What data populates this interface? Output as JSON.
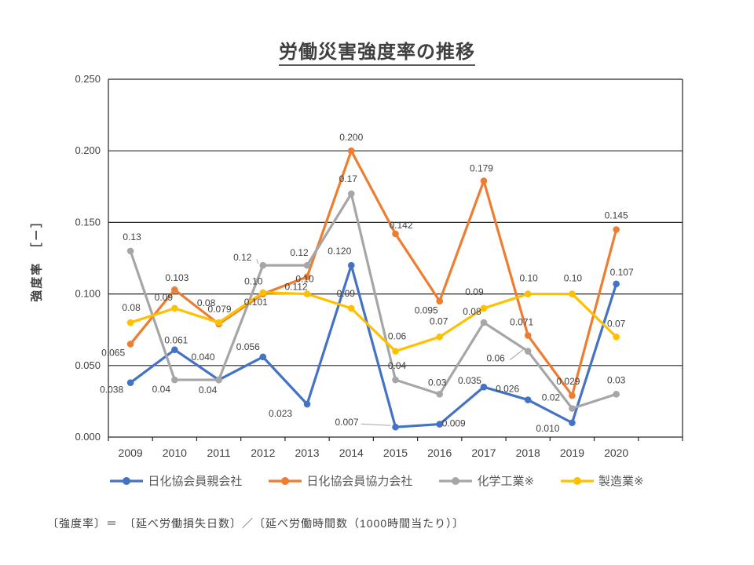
{
  "page": {
    "title": "労働災害強度率の推移",
    "y_axis_title": "強度率　［－］",
    "formula": "〔強度率〕＝　〔延べ労働損失日数〕／〔延べ労働時間数（1000時間当たり）〕"
  },
  "chart_data": {
    "type": "line",
    "title": "労働災害強度率の推移",
    "xlabel": "",
    "ylabel": "強度率　［－］",
    "ylim": [
      0,
      0.25
    ],
    "ytick_labels": [
      "0.000",
      "0.050",
      "0.100",
      "0.150",
      "0.200",
      "0.250"
    ],
    "grid": true,
    "legend_position": "bottom",
    "axis_color": "#262626",
    "text_color": "#404040",
    "leader_color": "#a6a6a6",
    "categories": [
      "2009",
      "2010",
      "2011",
      "2012",
      "2013",
      "2014",
      "2015",
      "2016",
      "2017",
      "2018",
      "2019",
      "2020"
    ],
    "series": [
      {
        "id": "nikkakyo-parent",
        "name": "日化協会員親会社",
        "color": "#4472C4",
        "values": [
          0.038,
          0.061,
          0.04,
          0.056,
          0.023,
          0.12,
          0.007,
          0.009,
          0.035,
          0.026,
          0.01,
          0.107
        ],
        "labels": [
          {
            "t": "0.038",
            "dx": -24,
            "dy": 9
          },
          {
            "t": "0.061",
            "dx": 2,
            "dy": -12
          },
          {
            "t": "0.040",
            "dx": -20,
            "dy": -29
          },
          {
            "t": "0.056",
            "dx": -19,
            "dy": -13
          },
          {
            "t": "0.023",
            "dx": -34,
            "dy": 12
          },
          {
            "t": "0.120",
            "dx": -15,
            "dy": -18
          },
          {
            "t": "0.007",
            "dx": -62,
            "dy": -6,
            "leader": true
          },
          {
            "t": "0.009",
            "dx": 18,
            "dy": -1
          },
          {
            "t": "0.035",
            "dx": -18,
            "dy": -8
          },
          {
            "t": "0.026",
            "dx": -26,
            "dy": -14
          },
          {
            "t": "0.010",
            "dx": -31,
            "dy": 7
          },
          {
            "t": "0.107",
            "dx": 7,
            "dy": -15
          }
        ]
      },
      {
        "id": "nikkakyo-partner",
        "name": "日化協会員協力会社",
        "color": "#ED7D31",
        "values": [
          0.065,
          0.103,
          0.079,
          0.1,
          0.112,
          0.2,
          0.142,
          0.095,
          0.179,
          0.071,
          0.029,
          0.145
        ],
        "labels": [
          {
            "t": "0.065",
            "dx": -22,
            "dy": 11
          },
          {
            "t": "0.103",
            "dx": 3,
            "dy": -15
          },
          {
            "t": "0.079",
            "dx": 1,
            "dy": -19
          },
          {
            "t": "0.10",
            "dx": -12,
            "dy": -16
          },
          {
            "t": "0.112",
            "dx": -14,
            "dy": 13
          },
          {
            "t": "0.200",
            "dx": 0,
            "dy": -17
          },
          {
            "t": "0.142",
            "dx": 7,
            "dy": -11
          },
          {
            "t": "0.095",
            "dx": -17,
            "dy": 12
          },
          {
            "t": "0.179",
            "dx": -3,
            "dy": -16
          },
          {
            "t": "0.071",
            "dx": -8,
            "dy": -17
          },
          {
            "t": "0.029",
            "dx": -5,
            "dy": -18
          },
          {
            "t": "0.145",
            "dx": 0,
            "dy": -18
          }
        ]
      },
      {
        "id": "chemical-industry",
        "name": "化学工業※",
        "color": "#A6A6A6",
        "values": [
          0.13,
          0.04,
          0.04,
          0.12,
          0.12,
          0.17,
          0.04,
          0.03,
          0.08,
          0.06,
          0.02,
          0.03
        ],
        "labels": [
          {
            "t": "0.13",
            "dx": 2,
            "dy": -18
          },
          {
            "t": "0.04",
            "dx": -17,
            "dy": 12
          },
          {
            "t": "0.04",
            "dx": -14,
            "dy": 13
          },
          {
            "t": "0.12",
            "dx": -26,
            "dy": -10,
            "leader": true
          },
          {
            "t": "0.12",
            "dx": -10,
            "dy": -16
          },
          {
            "t": "0.17",
            "dx": -4,
            "dy": -19
          },
          {
            "t": "0.04",
            "dx": 2,
            "dy": -18
          },
          {
            "t": "0.03",
            "dx": -3,
            "dy": -15
          },
          {
            "t": "0.08",
            "dx": -15,
            "dy": -14
          },
          {
            "t": "0.06",
            "dx": -41,
            "dy": 9,
            "leader": true
          },
          {
            "t": "0.02",
            "dx": -27,
            "dy": -14
          },
          {
            "t": "0.03",
            "dx": 0,
            "dy": -18
          }
        ]
      },
      {
        "id": "manufacturing",
        "name": "製造業※",
        "color": "#FFC000",
        "values": [
          0.08,
          0.09,
          0.08,
          0.101,
          0.1,
          0.09,
          0.06,
          0.07,
          0.09,
          0.1,
          0.1,
          0.07
        ],
        "labels": [
          {
            "t": "0.08",
            "dx": 1,
            "dy": -19
          },
          {
            "t": "0.09",
            "dx": -14,
            "dy": -14
          },
          {
            "t": "0.08",
            "dx": -16,
            "dy": -25
          },
          {
            "t": "0.101",
            "dx": -9,
            "dy": 12
          },
          {
            "t": "0.10",
            "dx": -3,
            "dy": -19
          },
          {
            "t": "0.09",
            "dx": -7,
            "dy": -19
          },
          {
            "t": "0.06",
            "dx": 2,
            "dy": -19
          },
          {
            "t": "0.07",
            "dx": -1,
            "dy": -20
          },
          {
            "t": "0.09",
            "dx": -12,
            "dy": -21
          },
          {
            "t": "0.10",
            "dx": 1,
            "dy": -20
          },
          {
            "t": "0.10",
            "dx": 1,
            "dy": -20
          },
          {
            "t": "0.07",
            "dx": 0,
            "dy": -17
          }
        ]
      }
    ]
  }
}
